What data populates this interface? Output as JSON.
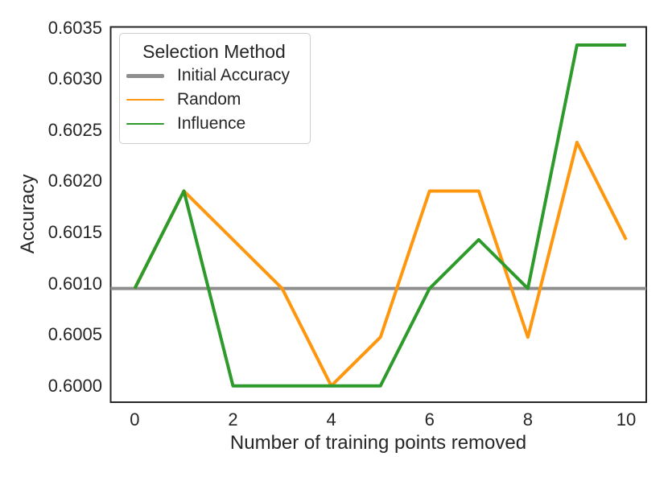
{
  "chart_data": {
    "type": "line",
    "title": "",
    "xlabel": "Number of training points removed",
    "ylabel": "Accuracy",
    "x": [
      0,
      1,
      2,
      3,
      4,
      5,
      6,
      7,
      8,
      9,
      10
    ],
    "series": [
      {
        "name": "Initial Accuracy",
        "type": "hline",
        "full_width": true,
        "color": "#8e8e8e",
        "linewidth": 4,
        "value": 0.600952
      },
      {
        "name": "Random",
        "type": "line",
        "color": "#ff970e",
        "linewidth": 4,
        "values": [
          0.600952,
          0.601905,
          0.601429,
          0.600952,
          0.6,
          0.600476,
          0.601905,
          0.601905,
          0.600476,
          0.602381,
          0.601429
        ]
      },
      {
        "name": "Influence",
        "type": "line",
        "color": "#2e9a2b",
        "linewidth": 4,
        "values": [
          0.600952,
          0.601905,
          0.6,
          0.6,
          0.6,
          0.6,
          0.600952,
          0.601429,
          0.600952,
          0.603333,
          0.603333
        ]
      }
    ],
    "legend": {
      "title": "Selection Method",
      "position": "upper-left"
    },
    "xticks": [
      "0",
      "2",
      "4",
      "6",
      "8",
      "10"
    ],
    "yticks": [
      "0.6000",
      "0.6005",
      "0.6010",
      "0.6015",
      "0.6020",
      "0.6025",
      "0.6030",
      "0.6035"
    ],
    "xlim": [
      -0.49,
      10.41
    ],
    "ylim": [
      0.59984,
      0.60351
    ],
    "grid": false,
    "axes_color": "#262626",
    "text_color": "#262626",
    "background_color": "#ffffff"
  }
}
